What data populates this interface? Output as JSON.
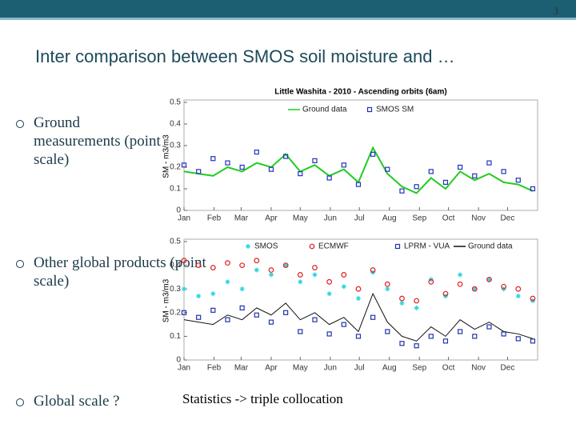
{
  "slide_number": "3",
  "title": "Inter comparison between SMOS soil moisture and …",
  "bullets": [
    "Ground measurements (point scale)",
    "Other global products (point scale)",
    "Global scale ?"
  ],
  "note": "Statistics -> triple collocation",
  "chart_data": [
    {
      "type": "line",
      "title": "Little Washita - 2010 - Ascending orbits (6am)",
      "y_label": "SM - m3/m3",
      "x": [
        0,
        15,
        30,
        45,
        60,
        75,
        90,
        105,
        120,
        135,
        150,
        165,
        180,
        195,
        210,
        225,
        240,
        255,
        270,
        285,
        300,
        315,
        330,
        345,
        360
      ],
      "xlim": [
        0,
        365
      ],
      "xticks": [
        {
          "value": 0,
          "label": "Jan"
        },
        {
          "value": 31,
          "label": "Feb"
        },
        {
          "value": 59,
          "label": "Mar"
        },
        {
          "value": 90,
          "label": "Apr"
        },
        {
          "value": 120,
          "label": "May"
        },
        {
          "value": 151,
          "label": "Jun"
        },
        {
          "value": 181,
          "label": "Jul"
        },
        {
          "value": 212,
          "label": "Aug"
        },
        {
          "value": 243,
          "label": "Sep"
        },
        {
          "value": 273,
          "label": "Oct"
        },
        {
          "value": 304,
          "label": "Nov"
        },
        {
          "value": 334,
          "label": "Dec"
        }
      ],
      "ylim": [
        0,
        0.5
      ],
      "yticks": [
        0,
        0.1,
        0.2,
        0.3,
        0.4,
        0.5
      ],
      "series": [
        {
          "name": "Ground data",
          "color": "#22cc22",
          "marker": "line",
          "values": [
            0.18,
            0.17,
            0.16,
            0.2,
            0.18,
            0.22,
            0.2,
            0.26,
            0.18,
            0.21,
            0.16,
            0.19,
            0.13,
            0.29,
            0.17,
            0.11,
            0.08,
            0.15,
            0.1,
            0.18,
            0.14,
            0.17,
            0.13,
            0.12,
            0.09
          ]
        },
        {
          "name": "SMOS SM",
          "color": "#2233bb",
          "marker": "square",
          "values": [
            0.21,
            0.18,
            0.24,
            0.22,
            0.2,
            0.27,
            0.19,
            0.25,
            0.17,
            0.23,
            0.15,
            0.21,
            0.12,
            0.26,
            0.19,
            0.09,
            0.11,
            0.18,
            0.13,
            0.2,
            0.16,
            0.22,
            0.18,
            0.14,
            0.1
          ]
        }
      ]
    },
    {
      "type": "line",
      "y_label": "SM - m3/m3",
      "x": [
        0,
        15,
        30,
        45,
        60,
        75,
        90,
        105,
        120,
        135,
        150,
        165,
        180,
        195,
        210,
        225,
        240,
        255,
        270,
        285,
        300,
        315,
        330,
        345,
        360
      ],
      "xlim": [
        0,
        365
      ],
      "xticks": [
        {
          "value": 0,
          "label": "Jan"
        },
        {
          "value": 31,
          "label": "Feb"
        },
        {
          "value": 59,
          "label": "Mar"
        },
        {
          "value": 90,
          "label": "Apr"
        },
        {
          "value": 120,
          "label": "May"
        },
        {
          "value": 151,
          "label": "Jun"
        },
        {
          "value": 181,
          "label": "Jul"
        },
        {
          "value": 212,
          "label": "Aug"
        },
        {
          "value": 243,
          "label": "Sep"
        },
        {
          "value": 273,
          "label": "Oct"
        },
        {
          "value": 304,
          "label": "Nov"
        },
        {
          "value": 334,
          "label": "Dec"
        }
      ],
      "ylim": [
        0,
        0.5
      ],
      "yticks": [
        0,
        0.1,
        0.2,
        0.3,
        0.4,
        0.5
      ],
      "series": [
        {
          "name": "SMOS",
          "color": "#33d6e0",
          "marker": "asterisk",
          "values": [
            0.3,
            0.27,
            0.28,
            0.33,
            0.3,
            0.38,
            0.36,
            0.4,
            0.33,
            0.36,
            0.28,
            0.31,
            0.26,
            0.37,
            0.3,
            0.24,
            0.22,
            0.34,
            0.27,
            0.36,
            0.3,
            0.34,
            0.3,
            0.27,
            0.25
          ]
        },
        {
          "name": "ECMWF",
          "color": "#dd2222",
          "marker": "circle",
          "values": [
            0.42,
            0.4,
            0.39,
            0.41,
            0.4,
            0.42,
            0.38,
            0.4,
            0.36,
            0.39,
            0.33,
            0.36,
            0.3,
            0.38,
            0.32,
            0.26,
            0.25,
            0.33,
            0.28,
            0.32,
            0.3,
            0.34,
            0.31,
            0.3,
            0.26
          ]
        },
        {
          "name": "LPRM - VUA",
          "color": "#2233aa",
          "marker": "square",
          "values": [
            0.2,
            0.18,
            0.21,
            0.17,
            0.22,
            0.19,
            0.16,
            0.2,
            0.12,
            0.17,
            0.11,
            0.15,
            0.1,
            0.18,
            0.12,
            0.07,
            0.06,
            0.1,
            0.08,
            0.12,
            0.1,
            0.14,
            0.11,
            0.09,
            0.08
          ]
        },
        {
          "name": "Ground data",
          "color": "#111111",
          "marker": "line",
          "values": [
            0.17,
            0.16,
            0.15,
            0.19,
            0.17,
            0.22,
            0.19,
            0.24,
            0.17,
            0.2,
            0.15,
            0.18,
            0.12,
            0.28,
            0.16,
            0.1,
            0.08,
            0.14,
            0.1,
            0.17,
            0.13,
            0.16,
            0.12,
            0.11,
            0.09
          ]
        }
      ]
    }
  ]
}
